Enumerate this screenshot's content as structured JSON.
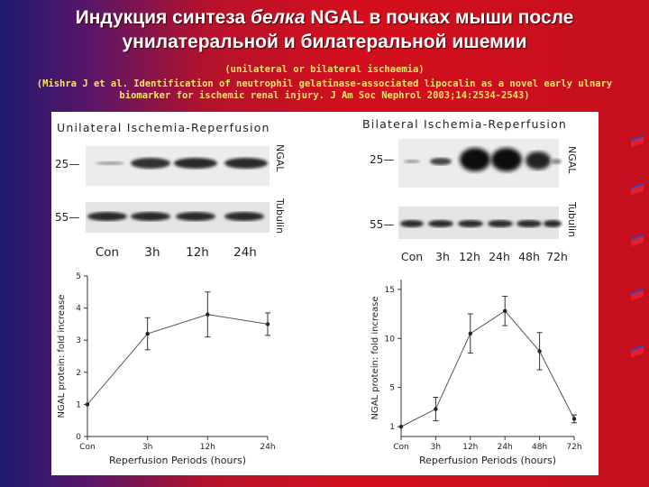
{
  "header": {
    "title_line1_pre": "Индукция синтеза ",
    "title_line1_em": "белка",
    "title_line1_post": " NGAL в почках мыши после",
    "title_line2": "унилатеральной и билатеральной ишемии",
    "subtitle": "(unilateral or bilateral ischaemia)",
    "citation_line1": "(Mishra J et al. Identification of neutrophil gelatinase-associated lipocalin as a novel early ulnary",
    "citation_line2": "biomarker for ischemic renal injury. J Am Soc Nephrol 2003;14:2534-2543)"
  },
  "blots": {
    "unilateral": {
      "title": "Unilateral Ischemia-Reperfusion",
      "mw_25": "25—",
      "mw_55": "55—",
      "label_ngal": "NGAL",
      "label_tubulin": "Tubulin",
      "lanes": [
        "Con",
        "3h",
        "12h",
        "24h"
      ]
    },
    "bilateral": {
      "title": "Bilateral Ischemia-Reperfusion",
      "mw_25": "25—",
      "mw_55": "55—",
      "label_ngal": "NGAL",
      "label_tubulin": "Tubulin",
      "lanes": [
        "Con",
        "3h",
        "12h",
        "24h",
        "48h",
        "72h"
      ]
    }
  },
  "chart_data": [
    {
      "type": "line",
      "x": [
        "Con",
        "3h",
        "12h",
        "24h"
      ],
      "y": [
        1.0,
        3.2,
        3.8,
        3.5
      ],
      "err": [
        0,
        0.5,
        0.7,
        0.35
      ],
      "ylim": [
        0,
        5
      ],
      "yticks": [
        "0",
        "1",
        "2",
        "3",
        "4",
        "5"
      ],
      "ylabel": "NGAL protein: fold increase",
      "xlabel": "Reperfusion Periods (hours)"
    },
    {
      "type": "line",
      "x": [
        "Con",
        "3h",
        "12h",
        "24h",
        "48h",
        "72h"
      ],
      "y": [
        1.0,
        2.8,
        10.5,
        12.8,
        8.7,
        1.8
      ],
      "err": [
        0,
        1.2,
        2.0,
        1.5,
        1.9,
        0.4
      ],
      "ylim": [
        0,
        16
      ],
      "yticks": [
        "1",
        "5",
        "10",
        "15"
      ],
      "ytick_values": [
        1,
        5,
        10,
        15
      ],
      "ylabel": "NGAL protein: fold increase",
      "xlabel": "Reperfusion Periods (hours)"
    }
  ]
}
